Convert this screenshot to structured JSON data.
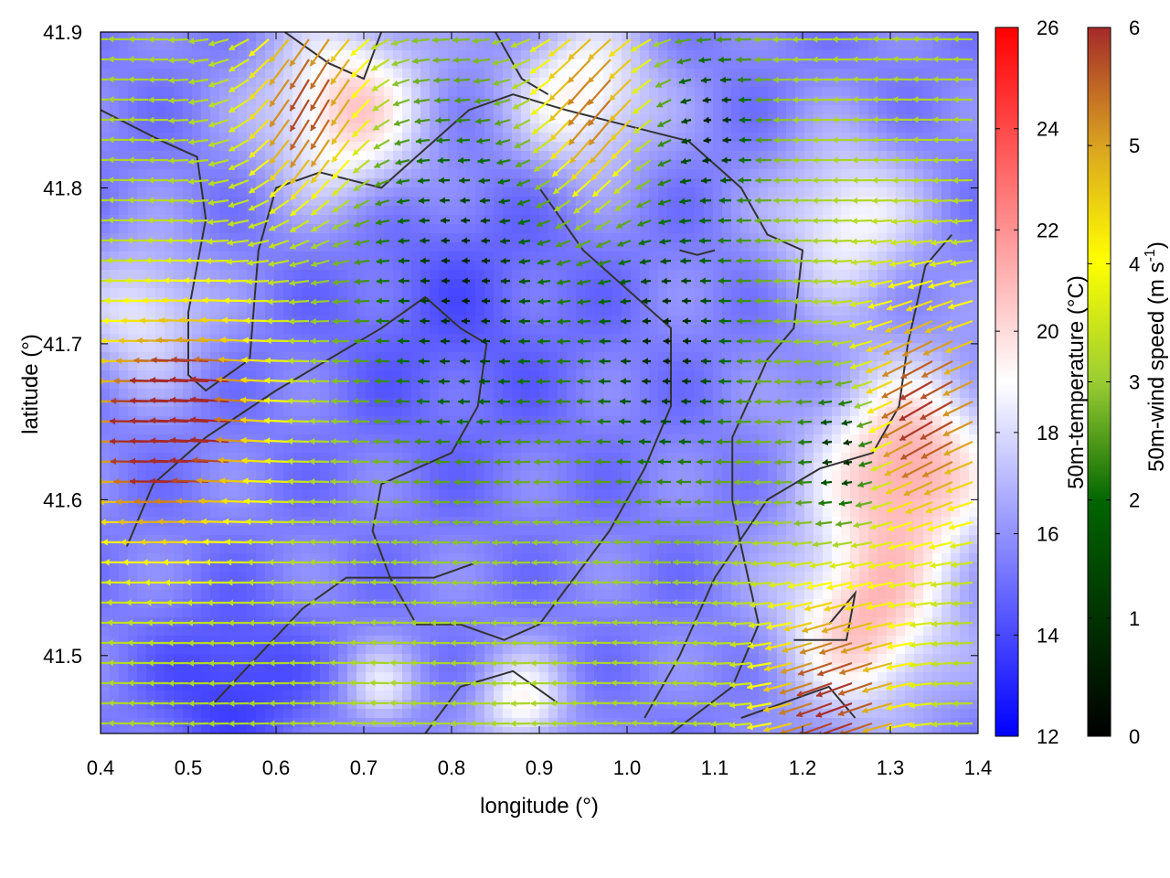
{
  "chart_data": {
    "type": "heatmap",
    "subtype": "wind-vector field over temperature map with coastline contours",
    "xlabel": "longitude (°)",
    "ylabel": "latitude (°)",
    "xlim": [
      0.4,
      1.4
    ],
    "ylim": [
      41.45,
      41.9
    ],
    "x_ticks": [
      "0.4",
      "0.5",
      "0.6",
      "0.7",
      "0.8",
      "0.9",
      "1.0",
      "1.1",
      "1.2",
      "1.3",
      "1.4"
    ],
    "y_ticks": [
      "41.5",
      "41.6",
      "41.7",
      "41.8",
      "41.9"
    ],
    "grid": false,
    "colorbars": [
      {
        "label": "50m-temperature (°C)",
        "range": [
          12,
          26
        ],
        "ticks": [
          "12",
          "14",
          "16",
          "18",
          "20",
          "22",
          "24",
          "26"
        ],
        "colors": [
          "#0000ff",
          "#ffffff",
          "#ff0000"
        ]
      },
      {
        "label_main": "50m-wind speed (m s",
        "label_sup": "-1",
        "label_end": ")",
        "range": [
          0,
          6
        ],
        "ticks": [
          "0",
          "1",
          "2",
          "3",
          "4",
          "5",
          "6"
        ],
        "colors": [
          "#000000",
          "#006400",
          "#9acd32",
          "#ffff00",
          "#daa520",
          "#a52a2a"
        ]
      }
    ],
    "temperature_field": {
      "base": 15.5,
      "features": [
        {
          "lon": 0.68,
          "lat": 41.85,
          "amp": 5.0,
          "r": 0.09
        },
        {
          "lon": 0.95,
          "lat": 41.86,
          "amp": 4.0,
          "r": 0.08
        },
        {
          "lon": 1.32,
          "lat": 41.62,
          "amp": 6.0,
          "r": 0.1
        },
        {
          "lon": 1.27,
          "lat": 41.52,
          "amp": 5.0,
          "r": 0.09
        },
        {
          "lon": 1.25,
          "lat": 41.78,
          "amp": 3.5,
          "r": 0.08
        },
        {
          "lon": 0.45,
          "lat": 41.72,
          "amp": 3.0,
          "r": 0.07
        },
        {
          "lon": 0.88,
          "lat": 41.47,
          "amp": 3.5,
          "r": 0.05
        },
        {
          "lon": 0.72,
          "lat": 41.48,
          "amp": 2.5,
          "r": 0.04
        },
        {
          "lon": 0.55,
          "lat": 41.48,
          "amp": -2.0,
          "r": 0.08
        },
        {
          "lon": 0.8,
          "lat": 41.72,
          "amp": -1.0,
          "r": 0.15
        }
      ]
    },
    "wind_field": {
      "typical_direction": "westward (from east)",
      "speed_range": [
        0,
        6
      ],
      "strong_zones": [
        {
          "lon": 0.65,
          "lat": 41.86,
          "speed": 6,
          "dir_deg": 240
        },
        {
          "lon": 0.97,
          "lat": 41.85,
          "speed": 6,
          "dir_deg": 230
        },
        {
          "lon": 1.35,
          "lat": 41.66,
          "speed": 6,
          "dir_deg": 210
        },
        {
          "lon": 1.25,
          "lat": 41.47,
          "speed": 6,
          "dir_deg": 200
        },
        {
          "lon": 0.47,
          "lat": 41.64,
          "speed": 5.5,
          "dir_deg": 180
        },
        {
          "lon": 0.55,
          "lat": 41.66,
          "speed": 4.5,
          "dir_deg": 175
        }
      ],
      "calm_zones": [
        {
          "lon": 0.82,
          "lat": 41.74,
          "radius": 0.12
        },
        {
          "lon": 1.05,
          "lat": 41.7,
          "radius": 0.1
        },
        {
          "lon": 1.25,
          "lat": 41.63,
          "radius": 0.05
        },
        {
          "lon": 1.1,
          "lat": 41.84,
          "radius": 0.06
        }
      ]
    },
    "contours": [
      [
        [
          0.4,
          41.85
        ],
        [
          0.47,
          41.83
        ],
        [
          0.51,
          41.82
        ],
        [
          0.52,
          41.78
        ],
        [
          0.5,
          41.72
        ],
        [
          0.5,
          41.68
        ],
        [
          0.52,
          41.67
        ],
        [
          0.57,
          41.69
        ],
        [
          0.58,
          41.76
        ],
        [
          0.6,
          41.8
        ],
        [
          0.65,
          41.81
        ],
        [
          0.72,
          41.8
        ],
        [
          0.78,
          41.83
        ],
        [
          0.82,
          41.85
        ],
        [
          0.87,
          41.86
        ],
        [
          0.93,
          41.85
        ],
        [
          1.0,
          41.84
        ],
        [
          1.07,
          41.83
        ],
        [
          1.13,
          41.8
        ],
        [
          1.16,
          41.77
        ],
        [
          1.2,
          41.76
        ],
        [
          1.19,
          41.71
        ],
        [
          1.16,
          41.69
        ],
        [
          1.12,
          41.64
        ],
        [
          1.12,
          41.6
        ],
        [
          1.13,
          41.57
        ],
        [
          1.15,
          41.52
        ],
        [
          1.12,
          41.48
        ],
        [
          1.05,
          41.45
        ]
      ],
      [
        [
          0.43,
          41.57
        ],
        [
          0.46,
          41.61
        ],
        [
          0.52,
          41.64
        ],
        [
          0.6,
          41.67
        ],
        [
          0.66,
          41.69
        ],
        [
          0.72,
          41.71
        ],
        [
          0.77,
          41.73
        ],
        [
          0.81,
          41.71
        ],
        [
          0.84,
          41.7
        ],
        [
          0.83,
          41.66
        ],
        [
          0.8,
          41.63
        ],
        [
          0.76,
          41.62
        ],
        [
          0.72,
          41.61
        ],
        [
          0.71,
          41.58
        ],
        [
          0.73,
          41.55
        ],
        [
          0.76,
          41.52
        ],
        [
          0.81,
          41.52
        ],
        [
          0.86,
          41.51
        ],
        [
          0.9,
          41.52
        ],
        [
          0.94,
          41.55
        ],
        [
          0.98,
          41.58
        ],
        [
          1.02,
          41.62
        ],
        [
          1.05,
          41.66
        ],
        [
          1.05,
          41.71
        ],
        [
          1.01,
          41.73
        ],
        [
          0.95,
          41.76
        ],
        [
          0.9,
          41.8
        ]
      ],
      [
        [
          0.53,
          41.47
        ],
        [
          0.58,
          41.5
        ],
        [
          0.63,
          41.53
        ],
        [
          0.68,
          41.55
        ],
        [
          0.72,
          41.55
        ],
        [
          0.78,
          41.55
        ],
        [
          0.83,
          41.56
        ]
      ],
      [
        [
          0.77,
          41.45
        ],
        [
          0.81,
          41.48
        ],
        [
          0.87,
          41.49
        ],
        [
          0.92,
          41.47
        ]
      ],
      [
        [
          1.02,
          41.46
        ],
        [
          1.06,
          41.5
        ],
        [
          1.1,
          41.55
        ],
        [
          1.16,
          41.6
        ],
        [
          1.22,
          41.62
        ],
        [
          1.28,
          41.63
        ],
        [
          1.31,
          41.66
        ],
        [
          1.32,
          41.7
        ],
        [
          1.34,
          41.75
        ],
        [
          1.37,
          41.77
        ]
      ],
      [
        [
          1.19,
          41.51
        ],
        [
          1.25,
          41.51
        ],
        [
          1.26,
          41.54
        ],
        [
          1.23,
          41.52
        ]
      ],
      [
        [
          1.13,
          41.46
        ],
        [
          1.18,
          41.47
        ],
        [
          1.23,
          41.48
        ],
        [
          1.26,
          41.46
        ]
      ],
      [
        [
          0.61,
          41.9
        ],
        [
          0.66,
          41.88
        ],
        [
          0.7,
          41.87
        ],
        [
          0.72,
          41.9
        ]
      ],
      [
        [
          0.85,
          41.9
        ],
        [
          0.88,
          41.87
        ],
        [
          0.91,
          41.86
        ]
      ],
      [
        [
          1.06,
          41.76
        ],
        [
          1.08,
          41.757
        ],
        [
          1.1,
          41.76
        ]
      ]
    ]
  }
}
